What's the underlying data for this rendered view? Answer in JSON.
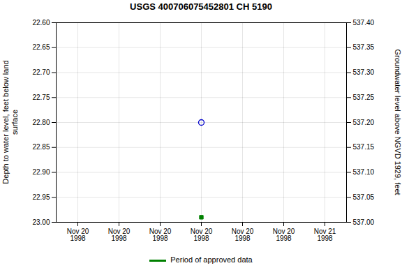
{
  "chart_data": {
    "type": "scatter",
    "title": "USGS 400706075452801 CH  5190",
    "y_label": "Depth to water level, feet below land\n surface",
    "y2_label": "Groundwater level above NGVD 1929, feet",
    "categories": [
      "Nov 20\n1998",
      "Nov 20\n1998",
      "Nov 20\n1998",
      "Nov 20\n1998",
      "Nov 20\n1998",
      "Nov 20\n1998",
      "Nov 21\n1998"
    ],
    "series": [
      {
        "color": "#0000cc",
        "marker": "open_circle",
        "values": [
          null,
          null,
          null,
          22.8,
          null,
          null,
          null
        ]
      },
      {
        "name": "Period of approved data",
        "color": "#008000",
        "marker": "square",
        "values": [
          null,
          null,
          null,
          22.99,
          null,
          null,
          null
        ]
      }
    ],
    "ylim": [
      23.0,
      22.6
    ],
    "yticks": [
      {
        "value": 22.6,
        "label": "22.60"
      },
      22.65,
      {
        "value": 22.7,
        "label": "22.70"
      },
      22.75,
      {
        "value": 22.8,
        "label": "22.80"
      },
      22.85,
      {
        "value": 22.9,
        "label": "22.90"
      },
      22.95,
      {
        "value": 23.0,
        "label": "23.00"
      }
    ],
    "y2lim": [
      537.0,
      537.4
    ],
    "y2ticks": [
      {
        "value": 537.4,
        "label": "537.40"
      },
      537.35,
      {
        "value": 537.3,
        "label": "537.30"
      },
      537.25,
      {
        "value": 537.2,
        "label": "537.20"
      },
      537.15,
      {
        "value": 537.1,
        "label": "537.10"
      },
      537.05,
      {
        "value": 537.0,
        "label": "537.00"
      }
    ],
    "grid": true,
    "legend": "bottom"
  }
}
